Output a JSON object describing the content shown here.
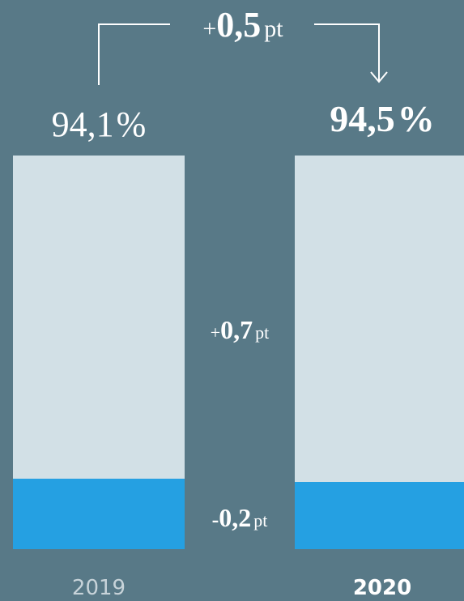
{
  "bars": [
    {
      "year": "2019",
      "total": "94,1",
      "total_unit": "%"
    },
    {
      "year": "2020",
      "total": "94,5",
      "total_unit": "%"
    }
  ],
  "total_change": {
    "sign": "+",
    "value": "0,5",
    "unit": "pt"
  },
  "segment_changes": [
    {
      "sign": "+",
      "value": "0,7",
      "unit": "pt"
    },
    {
      "sign": "-",
      "value": "0,2",
      "unit": "pt"
    }
  ]
}
